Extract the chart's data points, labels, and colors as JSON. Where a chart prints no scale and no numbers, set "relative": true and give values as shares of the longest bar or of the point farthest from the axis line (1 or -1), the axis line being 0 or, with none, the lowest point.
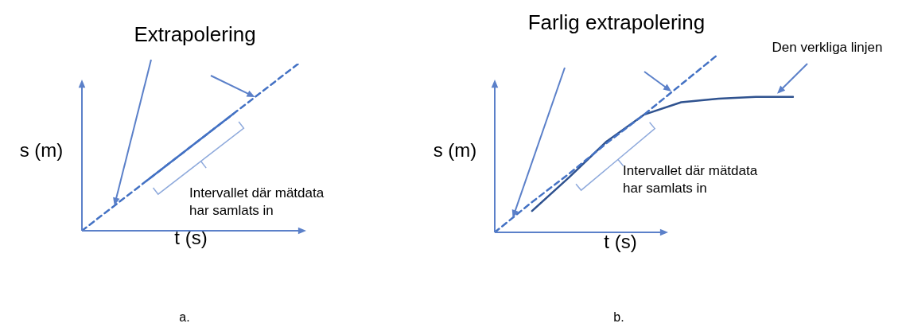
{
  "chart_data": [
    {
      "type": "line",
      "relative": true,
      "title": "Extrapolering",
      "xlabel": "t (s)",
      "ylabel": "s (m)",
      "marker": "none",
      "legend": false,
      "annotations": [
        "Intervallet där mätdata har samlats in",
        "a."
      ],
      "categories": [
        null,
        null,
        null,
        null,
        null,
        null,
        null,
        null,
        null,
        null,
        null
      ],
      "series": [
        {
          "color": "#4472c4",
          "line_style": "dashed",
          "values": [
            0,
            0.1,
            0.2,
            0.3,
            0.4,
            0.5,
            0.6,
            0.7,
            0.8,
            0.9,
            1
          ]
        },
        {
          "color": "#4472c4",
          "line_style": "solid",
          "values": [
            null,
            null,
            null,
            0.3,
            0.4,
            0.5,
            0.6,
            0.7,
            null,
            null,
            null
          ]
        }
      ]
    },
    {
      "type": "line",
      "relative": true,
      "title": "Farlig extrapolering",
      "xlabel": "t (s)",
      "ylabel": "s (m)",
      "marker": "none",
      "legend": false,
      "annotations": [
        "Intervallet där mätdata har samlats in",
        "Den verkliga linjen",
        "b."
      ],
      "categories": [
        null,
        null,
        null,
        null,
        null,
        null,
        null,
        null,
        null
      ],
      "series": [
        {
          "color": "#4472c4",
          "line_style": "dashed",
          "values": [
            0,
            0.17,
            0.33,
            0.5,
            0.66,
            0.83,
            1,
            null,
            null
          ]
        },
        {
          "color": "#2f528f",
          "line_style": "solid",
          "values": [
            null,
            0.12,
            0.31,
            0.51,
            0.66,
            0.73,
            0.75,
            0.76,
            0.76
          ]
        }
      ]
    }
  ]
}
